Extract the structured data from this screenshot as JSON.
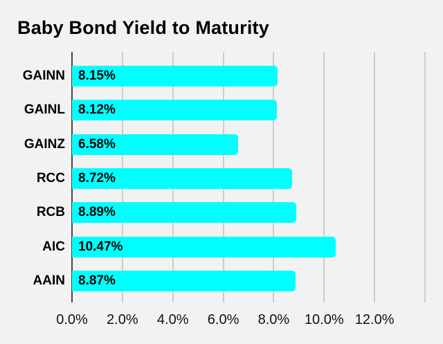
{
  "title": "Baby Bond Yield to Maturity",
  "colors": {
    "background": "#f2f2f2",
    "bar": "#00ffff",
    "gridline": "#cccccc",
    "axis_line": "#424242",
    "text": "#000000"
  },
  "chart_data": {
    "type": "bar",
    "orientation": "horizontal",
    "title": "Baby Bond Yield to Maturity",
    "categories": [
      "GAINN",
      "GAINL",
      "GAINZ",
      "RCC",
      "RCB",
      "AIC",
      "AAIN"
    ],
    "values": [
      8.15,
      8.12,
      6.58,
      8.72,
      8.89,
      10.47,
      8.87
    ],
    "value_labels": [
      "8.15%",
      "8.12%",
      "6.58%",
      "8.72%",
      "8.89%",
      "10.47%",
      "8.87%"
    ],
    "xlabel": "",
    "ylabel": "",
    "xlim": [
      0,
      14
    ],
    "x_ticks": [
      0,
      2,
      4,
      6,
      8,
      10,
      12
    ],
    "x_tick_labels": [
      "0.0%",
      "2.0%",
      "4.0%",
      "6.0%",
      "8.0%",
      "10.0%",
      "12.0%"
    ],
    "gridline_values": [
      0,
      2,
      4,
      6,
      8,
      10,
      12,
      14
    ],
    "grid": true,
    "legend": false
  }
}
